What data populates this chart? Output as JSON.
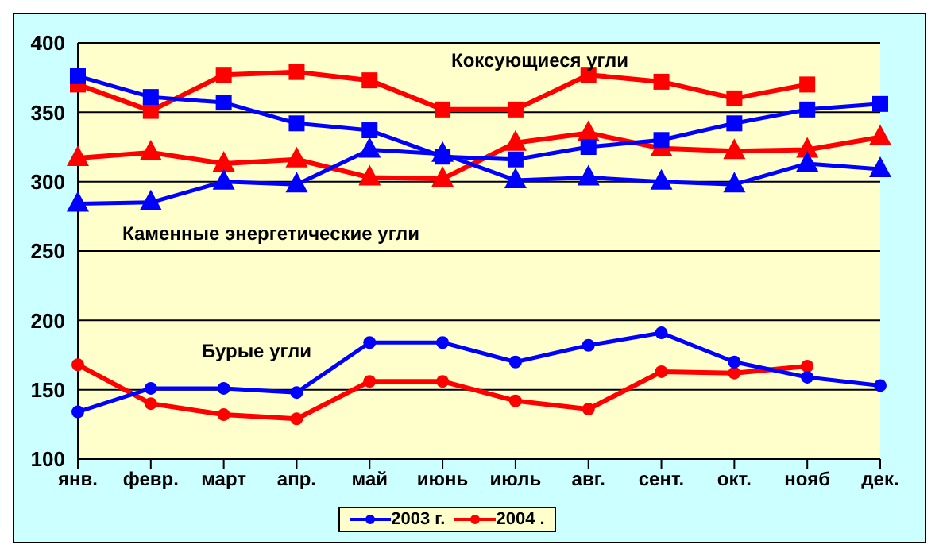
{
  "chart_data": {
    "type": "line",
    "categories": [
      "янв.",
      "февр.",
      "март",
      "апр.",
      "май",
      "июнь",
      "июль",
      "авг.",
      "сент.",
      "окт.",
      "нояб",
      "дек."
    ],
    "series": [
      {
        "name": "2003 г.",
        "color": "#0000ff",
        "marker": "square",
        "values": [
          376,
          361,
          357,
          342,
          337,
          318,
          316,
          325,
          330,
          342,
          352,
          356
        ]
      },
      {
        "color": "#0000ff",
        "marker": "triangle",
        "values": [
          284,
          285,
          300,
          298,
          323,
          320,
          301,
          303,
          300,
          298,
          313,
          309
        ]
      },
      {
        "color": "#0000ff",
        "marker": "circle",
        "values": [
          134,
          151,
          151,
          148,
          184,
          184,
          170,
          182,
          191,
          170,
          159,
          153
        ]
      },
      {
        "name": "2004 .",
        "color": "#ff0000",
        "marker": "square",
        "values": [
          370,
          351,
          377,
          379,
          373,
          352,
          352,
          377,
          372,
          360,
          370,
          null
        ]
      },
      {
        "color": "#ff0000",
        "marker": "triangle",
        "values": [
          317,
          321,
          313,
          316,
          303,
          302,
          328,
          335,
          324,
          322,
          323,
          332
        ]
      },
      {
        "color": "#ff0000",
        "marker": "circle",
        "values": [
          168,
          140,
          132,
          129,
          156,
          156,
          142,
          136,
          163,
          162,
          167,
          null
        ]
      }
    ],
    "ylim": [
      100,
      400
    ],
    "yticks": [
      100,
      150,
      200,
      250,
      300,
      350,
      400
    ],
    "grid": "y",
    "legend": "bottom",
    "annotations": [
      "Коксующиеся угли",
      "Каменные энергетические угли",
      "Бурые угли"
    ]
  }
}
